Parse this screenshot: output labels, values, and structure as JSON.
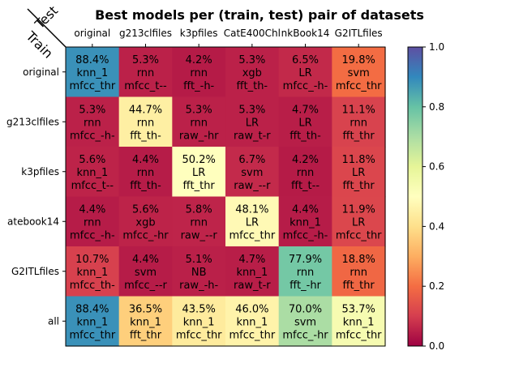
{
  "chart_data": {
    "type": "heatmap",
    "title": "Best models per (train, test) pair of datasets",
    "corner_labels": {
      "test": "Test",
      "train": "Train"
    },
    "x_categories": [
      "original",
      "g213clfiles",
      "k3pfiles",
      "CatE400Chlk",
      "notebook14",
      "G2ITLfiles"
    ],
    "x_tick_visible": [
      "original",
      "g213clfiles",
      "k3pfiles",
      "CatE400Chl",
      "nkBook14",
      "G2ITLfiles"
    ],
    "y_categories": [
      "original",
      "g213clfiles",
      "k3pfiles",
      "atebook14",
      "G2ITLfiles",
      "all"
    ],
    "values": [
      [
        0.884,
        0.053,
        0.042,
        0.053,
        0.065,
        0.198
      ],
      [
        0.053,
        0.447,
        0.053,
        0.053,
        0.047,
        0.111
      ],
      [
        0.056,
        0.044,
        0.502,
        0.067,
        0.042,
        0.118
      ],
      [
        0.044,
        0.056,
        0.058,
        0.481,
        0.044,
        0.119
      ],
      [
        0.107,
        0.044,
        0.051,
        0.047,
        0.779,
        0.188
      ],
      [
        0.884,
        0.365,
        0.435,
        0.46,
        0.7,
        0.537
      ]
    ],
    "cell_labels": [
      [
        [
          "88.4%",
          "knn_1",
          "mfcc_thr"
        ],
        [
          "5.3%",
          "rnn",
          "mfcc_t--"
        ],
        [
          "4.2%",
          "rnn",
          "fft_-h-"
        ],
        [
          "5.3%",
          "xgb",
          "fft_th-"
        ],
        [
          "6.5%",
          "LR",
          "mfcc_-h-"
        ],
        [
          "19.8%",
          "svm",
          "mfcc_thr"
        ]
      ],
      [
        [
          "5.3%",
          "rnn",
          "mfcc_-h-"
        ],
        [
          "44.7%",
          "rnn",
          "fft_th-"
        ],
        [
          "5.3%",
          "rnn",
          "raw_-hr"
        ],
        [
          "5.3%",
          "LR",
          "raw_t-r"
        ],
        [
          "4.7%",
          "LR",
          "fft_th-"
        ],
        [
          "11.1%",
          "rnn",
          "fft_thr"
        ]
      ],
      [
        [
          "5.6%",
          "knn_1",
          "mfcc_t--"
        ],
        [
          "4.4%",
          "rnn",
          "fft_th-"
        ],
        [
          "50.2%",
          "LR",
          "fft_thr"
        ],
        [
          "6.7%",
          "svm",
          "raw_--r"
        ],
        [
          "4.2%",
          "rnn",
          "fft_t--"
        ],
        [
          "11.8%",
          "LR",
          "fft_thr"
        ]
      ],
      [
        [
          "4.4%",
          "rnn",
          "mfcc_-h-"
        ],
        [
          "5.6%",
          "xgb",
          "mfcc_-hr"
        ],
        [
          "5.8%",
          "rnn",
          "raw_--r"
        ],
        [
          "48.1%",
          "LR",
          "mfcc_thr"
        ],
        [
          "4.4%",
          "knn_1",
          "mfcc_-h-"
        ],
        [
          "11.9%",
          "LR",
          "mfcc_thr"
        ]
      ],
      [
        [
          "10.7%",
          "knn_1",
          "mfcc_th-"
        ],
        [
          "4.4%",
          "svm",
          "mfcc_--r"
        ],
        [
          "5.1%",
          "NB",
          "raw_-h-"
        ],
        [
          "4.7%",
          "knn_1",
          "raw_t-r"
        ],
        [
          "77.9%",
          "rnn",
          "fft_-hr"
        ],
        [
          "18.8%",
          "rnn",
          "fft_thr"
        ]
      ],
      [
        [
          "88.4%",
          "knn_1",
          "mfcc_thr"
        ],
        [
          "36.5%",
          "knn_1",
          "fft_thr"
        ],
        [
          "43.5%",
          "knn_1",
          "mfcc_thr"
        ],
        [
          "46.0%",
          "knn_1",
          "mfcc_thr"
        ],
        [
          "70.0%",
          "svm",
          "mfcc_-hr"
        ],
        [
          "53.7%",
          "knn_1",
          "mfcc_thr"
        ]
      ]
    ],
    "colorbar": {
      "range": [
        0.0,
        1.0
      ],
      "ticks": [
        0.0,
        0.2,
        0.4,
        0.6,
        0.8,
        1.0
      ],
      "tick_labels": [
        "0.0",
        "0.2",
        "0.4",
        "0.6",
        "0.8",
        "1.0"
      ],
      "colormap": "Spectral"
    }
  }
}
